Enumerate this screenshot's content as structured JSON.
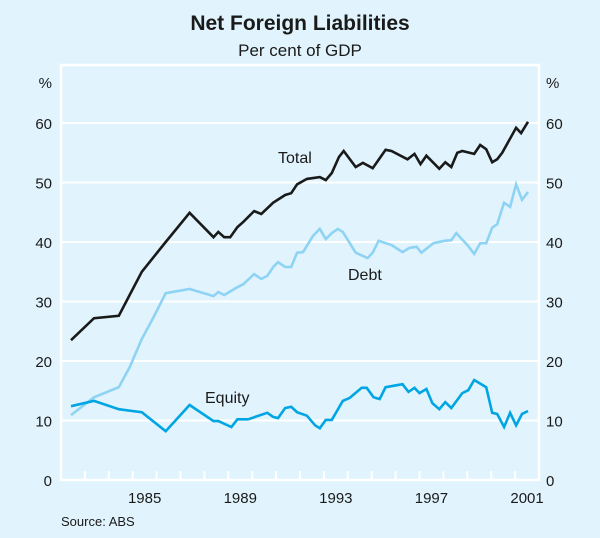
{
  "chart_data": {
    "type": "line",
    "title": "Net Foreign Liabilities",
    "subtitle": "Per cent of GDP",
    "ylabel_left": "%",
    "ylabel_right": "%",
    "xlabel": "",
    "xlim": [
      1982,
      2002
    ],
    "ylim": [
      0,
      65
    ],
    "yticks": [
      0,
      10,
      20,
      30,
      40,
      50,
      60
    ],
    "ytick_labels": [
      "0",
      "10",
      "20",
      "30",
      "40",
      "50",
      "60"
    ],
    "xtick_labels": [
      {
        "year": 1985,
        "label": "1985"
      },
      {
        "year": 1989,
        "label": "1989"
      },
      {
        "year": 1993,
        "label": "1993"
      },
      {
        "year": 1997,
        "label": "1997"
      },
      {
        "year": 2001,
        "label": "2001"
      }
    ],
    "grid": true,
    "source": "Source: ABS",
    "series": [
      {
        "name": "Total",
        "color": "#1a1a1a",
        "x": [
          1982.42,
          1983.38,
          1984.42,
          1985.38,
          1986.38,
          1987.38,
          1988.38,
          1988.58,
          1988.83,
          1989.08,
          1989.38,
          1989.63,
          1990.08,
          1990.38,
          1990.88,
          1991.38,
          1991.63,
          1991.88,
          1992.29,
          1992.83,
          1993.08,
          1993.33,
          1993.63,
          1993.83,
          1994.33,
          1994.63,
          1995.04,
          1995.58,
          1995.83,
          1996.5,
          1996.79,
          1997.04,
          1997.29,
          1997.83,
          1998.08,
          1998.33,
          1998.58,
          1998.79,
          1999.29,
          1999.54,
          1999.79,
          2000.04,
          2000.25,
          2000.46,
          2001.04,
          2001.25,
          2001.54
        ],
        "values": [
          23.5,
          27.2,
          27.6,
          35.0,
          40.0,
          44.9,
          40.8,
          41.7,
          40.8,
          40.8,
          42.5,
          43.4,
          45.2,
          44.7,
          46.6,
          47.9,
          48.2,
          49.7,
          50.6,
          50.9,
          50.4,
          51.6,
          54.3,
          55.3,
          52.6,
          53.3,
          52.4,
          55.5,
          55.3,
          53.9,
          54.8,
          53.1,
          54.5,
          52.3,
          53.4,
          52.6,
          55.0,
          55.3,
          54.8,
          56.3,
          55.6,
          53.4,
          53.9,
          55.0,
          59.2,
          58.3,
          60.2
        ]
      },
      {
        "name": "Debt",
        "color": "#8fd3f4",
        "x": [
          1982.42,
          1983.38,
          1984.42,
          1984.88,
          1985.38,
          1985.88,
          1986.38,
          1987.38,
          1988.38,
          1988.58,
          1988.83,
          1989.38,
          1989.63,
          1990.08,
          1990.38,
          1990.63,
          1990.88,
          1991.08,
          1991.38,
          1991.63,
          1991.88,
          1992.13,
          1992.54,
          1992.83,
          1993.08,
          1993.33,
          1993.58,
          1993.79,
          1994.33,
          1994.83,
          1995.04,
          1995.29,
          1995.83,
          1996.29,
          1996.58,
          1996.88,
          1997.08,
          1997.58,
          1998.04,
          1998.33,
          1998.54,
          1999.0,
          1999.29,
          1999.54,
          1999.79,
          2000.04,
          2000.25,
          2000.54,
          2000.79,
          2001.04,
          2001.29,
          2001.54
        ],
        "values": [
          10.9,
          13.9,
          15.6,
          19.0,
          23.7,
          27.4,
          31.4,
          32.1,
          30.9,
          31.6,
          31.1,
          32.4,
          32.9,
          34.6,
          33.8,
          34.3,
          35.8,
          36.6,
          35.8,
          35.8,
          38.2,
          38.3,
          41.0,
          42.2,
          40.5,
          41.5,
          42.2,
          41.7,
          38.2,
          37.3,
          38.2,
          40.2,
          39.5,
          38.3,
          39.0,
          39.2,
          38.2,
          39.8,
          40.2,
          40.3,
          41.5,
          39.5,
          38.0,
          39.8,
          39.8,
          42.4,
          43.0,
          46.6,
          45.9,
          49.7,
          47.1,
          48.4
        ]
      },
      {
        "name": "Equity",
        "color": "#00a5e3",
        "x": [
          1982.42,
          1983.38,
          1984.42,
          1985.38,
          1986.38,
          1987.38,
          1988.38,
          1988.58,
          1989.13,
          1989.38,
          1989.83,
          1990.63,
          1990.88,
          1991.08,
          1991.38,
          1991.63,
          1991.88,
          1992.29,
          1992.63,
          1992.83,
          1993.08,
          1993.33,
          1993.79,
          1994.08,
          1994.58,
          1994.79,
          1995.08,
          1995.33,
          1995.58,
          1996.29,
          1996.54,
          1996.79,
          1997.0,
          1997.29,
          1997.54,
          1997.83,
          1998.08,
          1998.33,
          1998.79,
          1999.04,
          1999.29,
          1999.79,
          2000.04,
          2000.25,
          2000.54,
          2000.79,
          2001.04,
          2001.29,
          2001.54
        ],
        "values": [
          12.4,
          13.3,
          11.9,
          11.4,
          8.2,
          12.6,
          9.9,
          9.9,
          8.9,
          10.2,
          10.2,
          11.3,
          10.6,
          10.4,
          12.1,
          12.3,
          11.4,
          10.8,
          9.2,
          8.7,
          10.1,
          10.1,
          13.3,
          13.8,
          15.5,
          15.5,
          13.9,
          13.6,
          15.6,
          16.1,
          14.8,
          15.5,
          14.6,
          15.3,
          12.9,
          11.9,
          13.1,
          12.1,
          14.6,
          15.1,
          16.8,
          15.6,
          11.3,
          11.1,
          8.9,
          11.3,
          9.2,
          11.1,
          11.6
        ]
      }
    ]
  }
}
